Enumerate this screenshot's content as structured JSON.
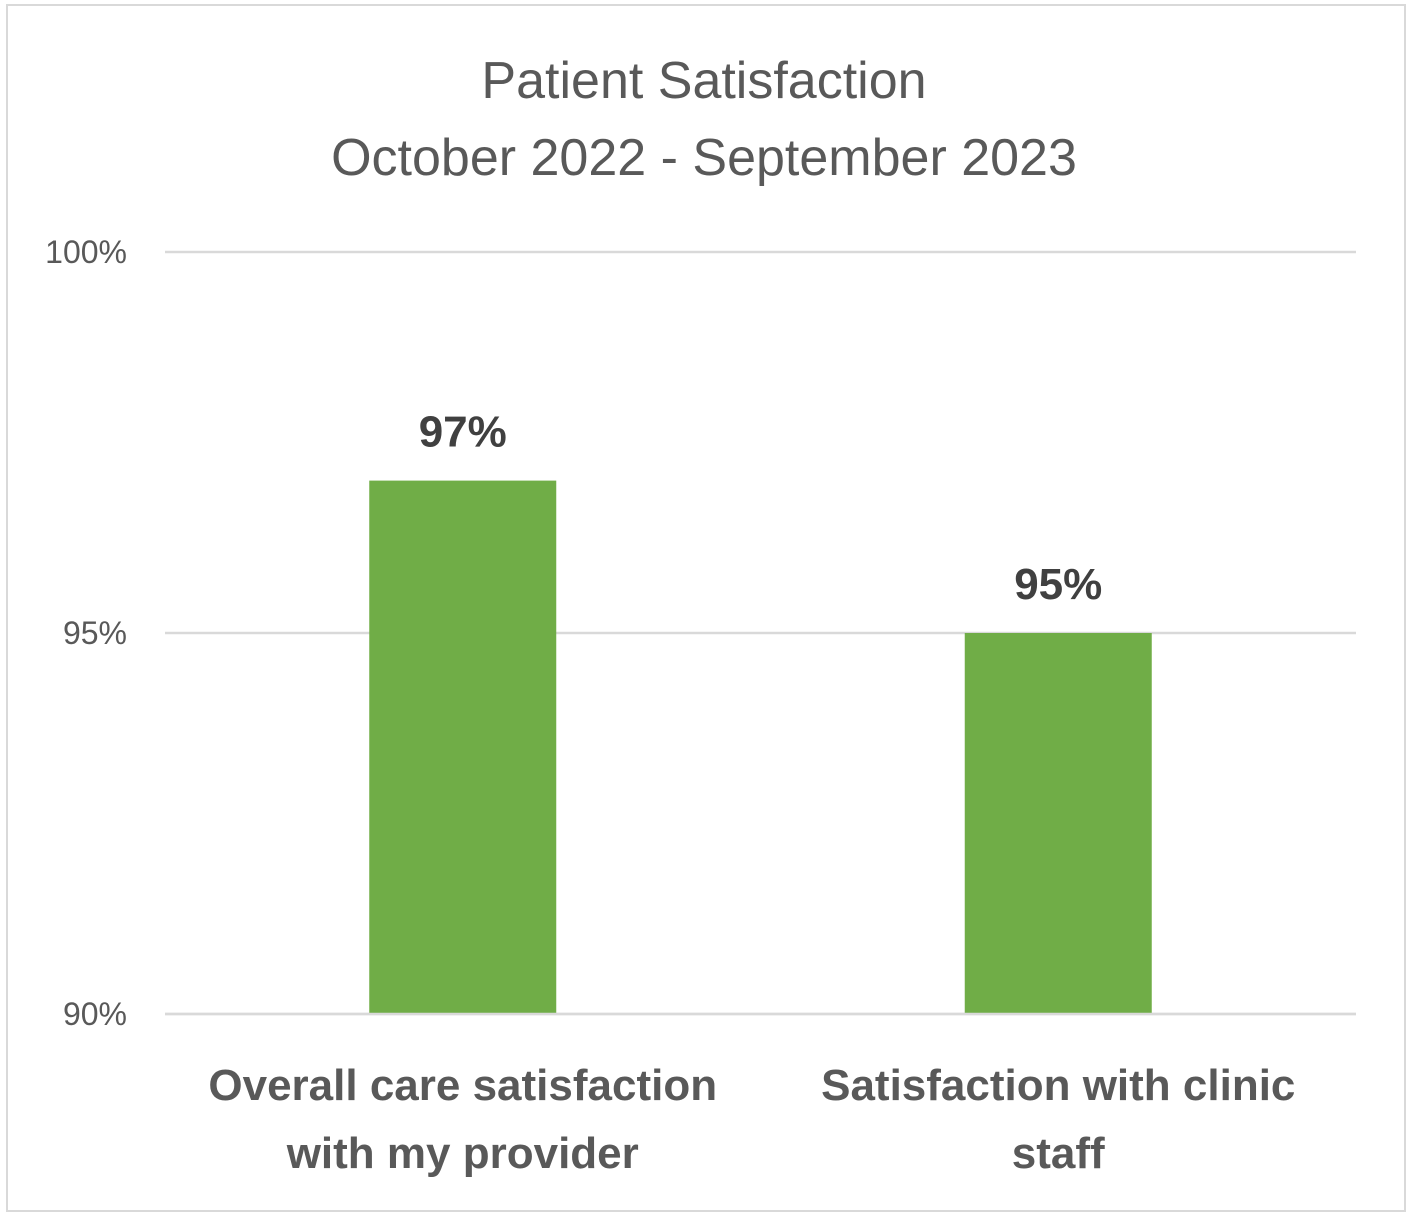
{
  "chart_data": {
    "type": "bar",
    "title": [
      "Patient Satisfaction",
      "October 2022 - September 2023"
    ],
    "categories": [
      [
        "Overall care satisfaction",
        "with my provider"
      ],
      [
        "Satisfaction with clinic",
        "staff"
      ]
    ],
    "values": [
      97,
      95
    ],
    "data_labels": [
      "97%",
      "95%"
    ],
    "ylim": [
      90,
      100
    ],
    "yticks": [
      {
        "value": 90,
        "label": "90%"
      },
      {
        "value": 95,
        "label": "95%"
      },
      {
        "value": 100,
        "label": "100%"
      }
    ],
    "grid": true,
    "legend": "none",
    "bar_color": "#70ad47"
  }
}
